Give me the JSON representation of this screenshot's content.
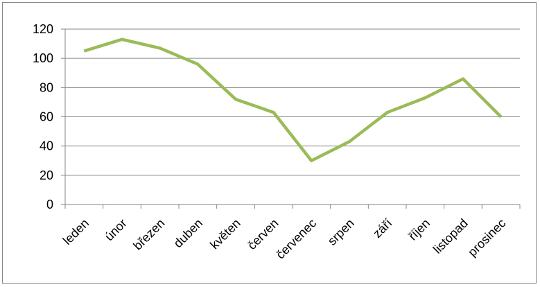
{
  "chart_data": {
    "type": "line",
    "title": "",
    "xlabel": "",
    "ylabel": "",
    "categories": [
      "leden",
      "únor",
      "březen",
      "duben",
      "květen",
      "červen",
      "červenec",
      "srpen",
      "září",
      "říjen",
      "listopad",
      "prosinec"
    ],
    "series": [
      {
        "values": [
          105,
          113,
          107,
          96,
          72,
          63,
          30,
          43,
          63,
          73,
          86,
          60
        ]
      }
    ],
    "ylim": [
      0,
      120
    ],
    "yticks": [
      0,
      20,
      40,
      60,
      80,
      100,
      120
    ],
    "grid": true,
    "legend": "none",
    "colors": {
      "line": "#9bbb59",
      "grid": "#868686",
      "axis": "#868686"
    }
  }
}
